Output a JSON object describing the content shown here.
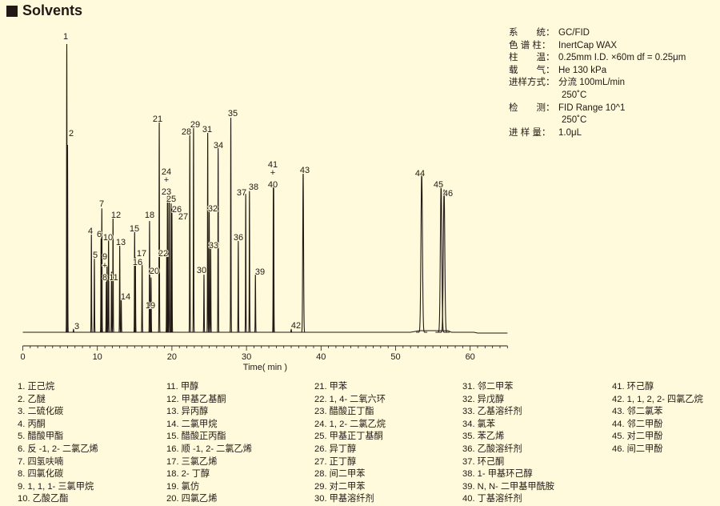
{
  "title": "Solvents",
  "conditions": [
    {
      "label": "系　　统：",
      "value": "GC/FID"
    },
    {
      "label": "色 谱 柱：",
      "value": "InertCap WAX"
    },
    {
      "label": "柱　　温：",
      "value": "0.25mm I.D. ×60m df = 0.25μm"
    },
    {
      "label": "载　　气：",
      "value": "He 130 kPa"
    },
    {
      "label": "进样方式：",
      "value": "分流 100mL/min"
    },
    {
      "label": "",
      "value": "250˚C"
    },
    {
      "label": "检　　测：",
      "value": "FID Range 10^1"
    },
    {
      "label": "",
      "value": "250˚C"
    },
    {
      "label": "进 样 量：",
      "value": "1.0μL"
    }
  ],
  "compounds": [
    "1. 正己烷",
    "2. 乙醚",
    "3. 二硫化碳",
    "4. 丙酮",
    "5. 醋酸甲酯",
    "6. 反 -1, 2- 二氯乙烯",
    "7. 四氢呋喃",
    "8. 四氯化碳",
    "9. 1, 1, 1- 三氯甲烷",
    "10. 乙酸乙酯",
    "11. 甲醇",
    "12. 甲基乙基酮",
    "13. 异丙醇",
    "14. 二氯甲烷",
    "15. 醋酸正丙酯",
    "16. 顺 -1, 2- 二氯乙烯",
    "17. 三氯乙烯",
    "18. 2- 丁醇",
    "19. 氯仿",
    "20. 四氯乙烯",
    "21. 甲苯",
    "22. 1, 4- 二氧六环",
    "23. 醋酸正丁酯",
    "24. 1, 2- 二氯乙烷",
    "25. 甲基正丁基酮",
    "26. 异丁醇",
    "27. 正丁醇",
    "28. 间二甲苯",
    "29. 对二甲苯",
    "30. 甲基溶纤剂",
    "31. 邻二甲苯",
    "32. 异戊醇",
    "33. 乙基溶纤剂",
    "34. 氯苯",
    "35. 苯乙烯",
    "36. 乙酸溶纤剂",
    "37. 环己酮",
    "38. 1- 甲基环己醇",
    "39. N, N- 二甲基甲酰胺",
    "40. 丁基溶纤剂",
    "41. 环己醇",
    "42. 1, 1, 2, 2- 四氯乙烷",
    "43. 邻二氯苯",
    "44. 邻二甲酚",
    "45. 对二甲酚",
    "46. 间二甲酚"
  ],
  "chart_data": {
    "type": "line",
    "title": "",
    "xlabel": "Time( min )",
    "ylabel": "",
    "xlim": [
      0,
      65
    ],
    "xticks": [
      0,
      10,
      20,
      30,
      40,
      50,
      60
    ],
    "grid": false,
    "line_color": "#231815",
    "peaks": [
      {
        "id": "1",
        "time": 5.9,
        "height": 100
      },
      {
        "id": "2",
        "time": 6.0,
        "height": 65
      },
      {
        "id": "3",
        "time": 6.8,
        "height": 1
      },
      {
        "id": "4",
        "time": 9.2,
        "height": 34
      },
      {
        "id": "5",
        "time": 9.6,
        "height": 25.5
      },
      {
        "id": "6",
        "time": 10.5,
        "height": 32.5
      },
      {
        "id": "7",
        "time": 10.6,
        "height": 43
      },
      {
        "id": "8",
        "time": 11.2,
        "height": 17.5
      },
      {
        "id": "9",
        "time": 11.3,
        "height": 23.6
      },
      {
        "id": "10",
        "time": 11.5,
        "height": 33
      },
      {
        "id": "11",
        "time": 11.9,
        "height": 21
      },
      {
        "id": "12",
        "time": 12.1,
        "height": 40.5
      },
      {
        "id": "13",
        "time": 13.0,
        "height": 30
      },
      {
        "id": "14",
        "time": 13.2,
        "height": 11.7
      },
      {
        "id": "15",
        "time": 15.0,
        "height": 35
      },
      {
        "id": "16",
        "time": 15.1,
        "height": 26
      },
      {
        "id": "17",
        "time": 16.0,
        "height": 24
      },
      {
        "id": "18",
        "time": 17.0,
        "height": 38.6
      },
      {
        "id": "19",
        "time": 17.1,
        "height": 9
      },
      {
        "id": "20",
        "time": 17.2,
        "height": 19
      },
      {
        "id": "21",
        "time": 18.3,
        "height": 73
      },
      {
        "id": "22",
        "time": 19.3,
        "height": 27
      },
      {
        "id": "23",
        "time": 19.4,
        "height": 47
      },
      {
        "id": "24",
        "time": 19.45,
        "height": 47
      },
      {
        "id": "25",
        "time": 19.65,
        "height": 46
      },
      {
        "id": "26",
        "time": 19.9,
        "height": 44.7
      },
      {
        "id": "27",
        "time": 20.0,
        "height": 43
      },
      {
        "id": "28",
        "time": 22.4,
        "height": 69
      },
      {
        "id": "29",
        "time": 22.9,
        "height": 71.4
      },
      {
        "id": "30",
        "time": 24.3,
        "height": 20
      },
      {
        "id": "31",
        "time": 24.8,
        "height": 70
      },
      {
        "id": "32",
        "time": 25.0,
        "height": 42
      },
      {
        "id": "33",
        "time": 25.2,
        "height": 30
      },
      {
        "id": "34",
        "time": 26.2,
        "height": 64
      },
      {
        "id": "35",
        "time": 27.9,
        "height": 74.4
      },
      {
        "id": "36",
        "time": 28.9,
        "height": 31.7
      },
      {
        "id": "37",
        "time": 29.9,
        "height": 48
      },
      {
        "id": "38",
        "time": 30.4,
        "height": 49
      },
      {
        "id": "39",
        "time": 31.2,
        "height": 20
      },
      {
        "id": "40",
        "time": 33.6,
        "height": 50.5
      },
      {
        "id": "41",
        "time": 33.65,
        "height": 50.5
      },
      {
        "id": "42",
        "time": 36.0,
        "height": 1
      },
      {
        "id": "43",
        "time": 37.6,
        "height": 56
      },
      {
        "id": "44",
        "time": 53.5,
        "height": 55.5
      },
      {
        "id": "45",
        "time": 56.1,
        "height": 51
      },
      {
        "id": "46",
        "time": 56.5,
        "height": 49.5
      }
    ],
    "coelution_marks": [
      "+",
      "+",
      "+"
    ]
  }
}
